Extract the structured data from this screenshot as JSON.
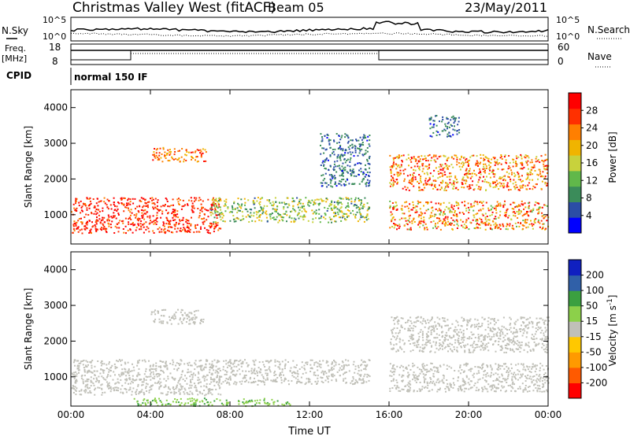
{
  "header": {
    "station": "Christmas Valley West (fitACF)",
    "beam": "Beam 05",
    "date": "23/May/2011"
  },
  "noise_panel": {
    "left_label": "N.Sky",
    "right_label": "N.Search",
    "ticks_left": [
      "10^5",
      "10^0"
    ],
    "ticks_right": [
      "10^5",
      "10^0"
    ]
  },
  "freq_panel": {
    "left_label_line1": "Freq.",
    "left_label_line2": "[MHz]",
    "left_ticks": [
      "18",
      "8"
    ],
    "right_label": "Nave",
    "right_ticks": [
      "60",
      "0"
    ]
  },
  "cpid_panel": {
    "label": "CPID",
    "mode": "normal 150 IF"
  },
  "colors": {
    "power": [
      "#0000ff",
      "#2b4da6",
      "#3b8c5a",
      "#61b84a",
      "#c8d23c",
      "#f0b400",
      "#ff7f00",
      "#ff3000",
      "#ff0000"
    ],
    "velocity": [
      "#ff0000",
      "#ff5a00",
      "#ff9a00",
      "#ffc800",
      "#c0c0b8",
      "#8cd04a",
      "#3ba040",
      "#3060a8",
      "#1020c0"
    ],
    "ground_scatter": "#c0c0b8"
  },
  "chart_data": [
    {
      "type": "heatmap",
      "name": "power",
      "xlabel": "",
      "ylabel": "Slant Range [km]",
      "x_ticks": [
        "00:00",
        "04:00",
        "08:00",
        "12:00",
        "16:00",
        "20:00",
        "00:00"
      ],
      "xlim_hours": [
        0,
        24
      ],
      "ylim_km": [
        180,
        4500
      ],
      "y_ticks": [
        1000,
        2000,
        3000,
        4000
      ],
      "colorbar_label": "Power [dB]",
      "colorbar_ticks": [
        4,
        8,
        12,
        16,
        20,
        24,
        28
      ],
      "colorbar_range": [
        0,
        30
      ],
      "regions": [
        {
          "t": [
            0,
            7.5
          ],
          "r": [
            500,
            1500
          ],
          "values_db": [
            22,
            30
          ]
        },
        {
          "t": [
            4,
            6.8
          ],
          "r": [
            2500,
            2900
          ],
          "values_db": [
            18,
            28
          ]
        },
        {
          "t": [
            7,
            15
          ],
          "r": [
            800,
            1500
          ],
          "values_db": [
            6,
            20
          ]
        },
        {
          "t": [
            16,
            24
          ],
          "r": [
            1700,
            2700
          ],
          "values_db": [
            14,
            30
          ]
        },
        {
          "t": [
            16,
            24
          ],
          "r": [
            600,
            1400
          ],
          "values_db": [
            12,
            30
          ]
        },
        {
          "t": [
            12.5,
            15
          ],
          "r": [
            1800,
            3300
          ],
          "values_db": [
            3,
            10
          ]
        },
        {
          "t": [
            18,
            19.5
          ],
          "r": [
            3200,
            3800
          ],
          "values_db": [
            3,
            10
          ]
        }
      ]
    },
    {
      "type": "heatmap",
      "name": "velocity",
      "xlabel": "Time UT",
      "ylabel": "Slant Range [km]",
      "x_ticks": [
        "00:00",
        "04:00",
        "08:00",
        "12:00",
        "16:00",
        "20:00",
        "00:00"
      ],
      "xlim_hours": [
        0,
        24
      ],
      "ylim_km": [
        180,
        4500
      ],
      "y_ticks": [
        1000,
        2000,
        3000,
        4000
      ],
      "colorbar_label": "Velocity [m s^-1]",
      "colorbar_ticks": [
        -200,
        -100,
        -50,
        -15,
        15,
        50,
        100,
        200
      ],
      "regions": [
        {
          "t": [
            0,
            7.5
          ],
          "r": [
            500,
            1500
          ],
          "values_ms": [
            -10,
            10
          ]
        },
        {
          "t": [
            4,
            6.8
          ],
          "r": [
            2500,
            2900
          ],
          "values_ms": [
            -10,
            10
          ]
        },
        {
          "t": [
            7,
            15
          ],
          "r": [
            800,
            1500
          ],
          "values_ms": [
            -10,
            10
          ]
        },
        {
          "t": [
            16,
            24
          ],
          "r": [
            1700,
            2700
          ],
          "values_ms": [
            -10,
            10
          ]
        },
        {
          "t": [
            16,
            24
          ],
          "r": [
            600,
            1400
          ],
          "values_ms": [
            -10,
            10
          ]
        },
        {
          "t": [
            3,
            11
          ],
          "r": [
            200,
            420
          ],
          "values_ms": [
            20,
            60
          ]
        }
      ]
    }
  ]
}
